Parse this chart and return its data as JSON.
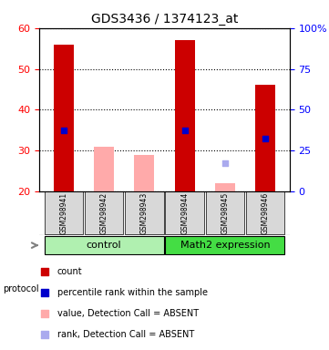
{
  "title": "GDS3436 / 1374123_at",
  "samples": [
    "GSM298941",
    "GSM298942",
    "GSM298943",
    "GSM298944",
    "GSM298945",
    "GSM298946"
  ],
  "groups": [
    "control",
    "control",
    "control",
    "Math2 expression",
    "Math2 expression",
    "Math2 expression"
  ],
  "ylim_left": [
    20,
    60
  ],
  "ylim_right": [
    0,
    100
  ],
  "yticks_left": [
    20,
    30,
    40,
    50,
    60
  ],
  "yticks_right": [
    0,
    25,
    50,
    75,
    100
  ],
  "yticklabels_right": [
    "0",
    "25",
    "50",
    "75",
    "100%"
  ],
  "red_bars": {
    "present": [
      0,
      3,
      5
    ],
    "absent": [
      1,
      2,
      4
    ]
  },
  "bar_heights_red": [
    56,
    null,
    null,
    57,
    null,
    46
  ],
  "bar_base_red": 20,
  "bar_heights_pink": [
    null,
    31,
    29,
    null,
    22,
    null
  ],
  "bar_base_pink": 20,
  "blue_squares_present": [
    0,
    3,
    5
  ],
  "blue_square_vals": [
    35,
    35,
    33
  ],
  "blue_squares_absent": [
    4
  ],
  "blue_square_absent_vals": [
    27
  ],
  "group_colors": {
    "control": "#90EE90",
    "Math2 expression": "#32CD32"
  },
  "group_bg_light": "#c8f0c8",
  "group_bg_dark": "#64d064",
  "legend_items": [
    {
      "color": "#cc0000",
      "label": "count"
    },
    {
      "color": "#0000cc",
      "label": "percentile rank within the sample"
    },
    {
      "color": "#ffaaaa",
      "label": "value, Detection Call = ABSENT"
    },
    {
      "color": "#aaaaee",
      "label": "rank, Detection Call = ABSENT"
    }
  ],
  "plot_bg": "#f0f0f0",
  "bar_width": 0.5,
  "red_color": "#cc0000",
  "pink_color": "#ffaaaa",
  "blue_color": "#0000cc",
  "lavender_color": "#aaaaee"
}
